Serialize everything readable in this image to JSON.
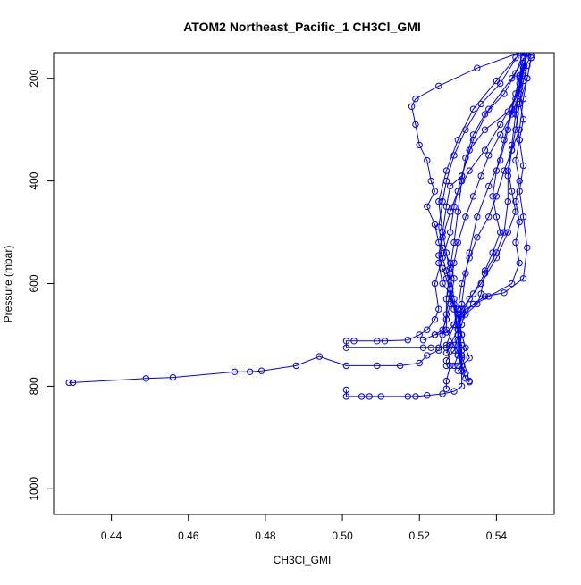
{
  "chart_data": {
    "type": "line",
    "title": "ATOM2 Northeast_Pacific_1 CH3Cl_GMI",
    "xlabel": "CH3Cl_GMI",
    "ylabel": "Pressure (mbar)",
    "xlim": [
      0.425,
      0.555
    ],
    "ylim": [
      1050,
      150
    ],
    "y_reversed": true,
    "x_ticks": [
      "0.44",
      "0.46",
      "0.48",
      "0.50",
      "0.52",
      "0.54"
    ],
    "y_ticks": [
      "200",
      "400",
      "600",
      "800",
      "1000"
    ],
    "grid": false,
    "legend": "none",
    "marker": "open-circle",
    "colors": {
      "series": "#0000ff",
      "axis": "#000000",
      "background": "#ffffff"
    },
    "series": [
      {
        "points": [
          [
            0.547,
            150
          ],
          [
            0.548,
            175
          ],
          [
            0.547,
            205
          ],
          [
            0.546,
            245
          ],
          [
            0.547,
            280
          ],
          [
            0.546,
            320
          ],
          [
            0.545,
            360
          ],
          [
            0.546,
            400
          ],
          [
            0.545,
            440
          ],
          [
            0.546,
            480
          ],
          [
            0.545,
            520
          ],
          [
            0.546,
            560
          ],
          [
            0.544,
            600
          ],
          [
            0.538,
            625
          ],
          [
            0.532,
            650
          ],
          [
            0.531,
            680
          ],
          [
            0.53,
            700
          ],
          [
            0.531,
            720
          ],
          [
            0.53,
            740
          ],
          [
            0.531,
            760
          ],
          [
            0.532,
            785
          ],
          [
            0.533,
            792
          ]
        ]
      },
      {
        "points": [
          [
            0.549,
            160
          ],
          [
            0.548,
            200
          ],
          [
            0.547,
            240
          ],
          [
            0.546,
            300
          ],
          [
            0.544,
            340
          ],
          [
            0.542,
            380
          ],
          [
            0.54,
            430
          ],
          [
            0.538,
            470
          ],
          [
            0.535,
            510
          ],
          [
            0.533,
            550
          ],
          [
            0.531,
            600
          ],
          [
            0.53,
            650
          ],
          [
            0.529,
            680
          ],
          [
            0.527,
            720
          ],
          [
            0.528,
            760
          ],
          [
            0.527,
            790
          ],
          [
            0.527,
            805
          ]
        ]
      },
      {
        "points": [
          [
            0.548,
            150
          ],
          [
            0.547,
            190
          ],
          [
            0.546,
            230
          ],
          [
            0.544,
            270
          ],
          [
            0.541,
            310
          ],
          [
            0.538,
            350
          ],
          [
            0.536,
            390
          ],
          [
            0.534,
            430
          ],
          [
            0.532,
            470
          ],
          [
            0.53,
            520
          ],
          [
            0.529,
            560
          ],
          [
            0.528,
            610
          ],
          [
            0.527,
            660
          ],
          [
            0.526,
            700
          ],
          [
            0.525,
            730
          ],
          [
            0.522,
            740
          ],
          [
            0.52,
            755
          ],
          [
            0.515,
            760
          ],
          [
            0.509,
            760
          ],
          [
            0.501,
            760
          ],
          [
            0.494,
            742
          ],
          [
            0.488,
            760
          ],
          [
            0.479,
            770
          ],
          [
            0.476,
            772
          ],
          [
            0.472,
            772
          ],
          [
            0.456,
            783
          ],
          [
            0.449,
            785
          ],
          [
            0.43,
            793
          ],
          [
            0.429,
            793
          ]
        ]
      },
      {
        "points": [
          [
            0.545,
            160
          ],
          [
            0.54,
            205
          ],
          [
            0.534,
            260
          ],
          [
            0.53,
            320
          ],
          [
            0.527,
            380
          ],
          [
            0.525,
            440
          ],
          [
            0.526,
            500
          ],
          [
            0.525,
            545
          ],
          [
            0.526,
            570
          ],
          [
            0.527,
            590
          ],
          [
            0.529,
            640
          ],
          [
            0.53,
            690
          ],
          [
            0.531,
            730
          ],
          [
            0.531,
            770
          ],
          [
            0.531,
            800
          ],
          [
            0.529,
            810
          ],
          [
            0.526,
            815
          ],
          [
            0.522,
            818
          ],
          [
            0.519,
            820
          ],
          [
            0.517,
            820
          ],
          [
            0.51,
            820
          ],
          [
            0.507,
            820
          ],
          [
            0.505,
            820
          ],
          [
            0.501,
            820
          ],
          [
            0.501,
            807
          ]
        ]
      },
      {
        "points": [
          [
            0.546,
            150
          ],
          [
            0.535,
            180
          ],
          [
            0.525,
            215
          ],
          [
            0.519,
            240
          ],
          [
            0.518,
            255
          ],
          [
            0.519,
            290
          ],
          [
            0.52,
            330
          ],
          [
            0.522,
            360
          ],
          [
            0.523,
            400
          ],
          [
            0.524,
            420
          ],
          [
            0.522,
            450
          ],
          [
            0.524,
            485
          ],
          [
            0.525,
            520
          ],
          [
            0.526,
            550
          ],
          [
            0.527,
            575
          ],
          [
            0.528,
            610
          ],
          [
            0.529,
            650
          ],
          [
            0.53,
            700
          ],
          [
            0.531,
            740
          ],
          [
            0.531,
            770
          ]
        ]
      },
      {
        "points": [
          [
            0.548,
            150
          ],
          [
            0.547,
            180
          ],
          [
            0.546,
            220
          ],
          [
            0.543,
            265
          ],
          [
            0.537,
            300
          ],
          [
            0.533,
            340
          ],
          [
            0.531,
            390
          ],
          [
            0.528,
            410
          ],
          [
            0.527,
            450
          ],
          [
            0.526,
            500
          ],
          [
            0.527,
            540
          ],
          [
            0.528,
            580
          ],
          [
            0.529,
            630
          ],
          [
            0.53,
            670
          ],
          [
            0.531,
            700
          ],
          [
            0.532,
            725
          ],
          [
            0.533,
            745
          ],
          [
            0.531,
            760
          ],
          [
            0.53,
            770
          ]
        ]
      },
      {
        "points": [
          [
            0.547,
            160
          ],
          [
            0.546,
            195
          ],
          [
            0.545,
            230
          ],
          [
            0.543,
            300
          ],
          [
            0.541,
            360
          ],
          [
            0.538,
            410
          ],
          [
            0.535,
            470
          ],
          [
            0.533,
            540
          ],
          [
            0.532,
            580
          ],
          [
            0.531,
            640
          ],
          [
            0.53,
            700
          ],
          [
            0.529,
            730
          ],
          [
            0.527,
            750
          ],
          [
            0.527,
            760
          ]
        ]
      },
      {
        "points": [
          [
            0.549,
            155
          ],
          [
            0.547,
            185
          ],
          [
            0.545,
            240
          ],
          [
            0.541,
            290
          ],
          [
            0.537,
            340
          ],
          [
            0.533,
            380
          ],
          [
            0.53,
            420
          ],
          [
            0.528,
            460
          ],
          [
            0.526,
            510
          ],
          [
            0.525,
            560
          ],
          [
            0.526,
            600
          ],
          [
            0.528,
            620
          ],
          [
            0.53,
            660
          ],
          [
            0.531,
            700
          ],
          [
            0.53,
            740
          ],
          [
            0.529,
            760
          ]
        ]
      },
      {
        "points": [
          [
            0.548,
            150
          ],
          [
            0.546,
            200
          ],
          [
            0.544,
            260
          ],
          [
            0.542,
            320
          ],
          [
            0.54,
            380
          ],
          [
            0.539,
            430
          ],
          [
            0.54,
            470
          ],
          [
            0.541,
            500
          ],
          [
            0.539,
            540
          ],
          [
            0.537,
            575
          ],
          [
            0.536,
            620
          ],
          [
            0.535,
            640
          ],
          [
            0.532,
            660
          ],
          [
            0.529,
            680
          ],
          [
            0.527,
            695
          ],
          [
            0.524,
            700
          ],
          [
            0.521,
            710
          ]
        ]
      },
      {
        "points": [
          [
            0.547,
            170
          ],
          [
            0.546,
            210
          ],
          [
            0.545,
            260
          ],
          [
            0.546,
            320
          ],
          [
            0.547,
            370
          ],
          [
            0.546,
            420
          ],
          [
            0.547,
            470
          ],
          [
            0.548,
            530
          ],
          [
            0.547,
            590
          ],
          [
            0.542,
            618
          ],
          [
            0.537,
            625
          ],
          [
            0.534,
            640
          ],
          [
            0.531,
            665
          ],
          [
            0.53,
            690
          ],
          [
            0.528,
            720
          ],
          [
            0.527,
            735
          ]
        ]
      },
      {
        "points": [
          [
            0.548,
            152
          ],
          [
            0.544,
            200
          ],
          [
            0.538,
            260
          ],
          [
            0.534,
            320
          ],
          [
            0.531,
            390
          ],
          [
            0.529,
            450
          ],
          [
            0.528,
            500
          ],
          [
            0.526,
            550
          ],
          [
            0.524,
            600
          ],
          [
            0.525,
            650
          ],
          [
            0.524,
            670
          ],
          [
            0.522,
            690
          ],
          [
            0.52,
            700
          ],
          [
            0.517,
            710
          ],
          [
            0.511,
            712
          ],
          [
            0.509,
            712
          ],
          [
            0.503,
            712
          ],
          [
            0.501,
            712
          ],
          [
            0.501,
            725
          ],
          [
            0.521,
            725
          ],
          [
            0.523,
            725
          ],
          [
            0.525,
            725
          ],
          [
            0.527,
            725
          ]
        ]
      },
      {
        "points": [
          [
            0.547,
            150
          ],
          [
            0.545,
            190
          ],
          [
            0.542,
            230
          ],
          [
            0.537,
            270
          ],
          [
            0.534,
            310
          ],
          [
            0.532,
            355
          ],
          [
            0.531,
            400
          ],
          [
            0.53,
            460
          ],
          [
            0.529,
            520
          ],
          [
            0.528,
            570
          ],
          [
            0.527,
            630
          ],
          [
            0.527,
            690
          ],
          [
            0.529,
            720
          ],
          [
            0.531,
            745
          ],
          [
            0.53,
            760
          ]
        ]
      },
      {
        "points": [
          [
            0.549,
            160
          ],
          [
            0.548,
            200
          ],
          [
            0.546,
            250
          ],
          [
            0.545,
            300
          ],
          [
            0.544,
            340
          ],
          [
            0.543,
            390
          ],
          [
            0.543,
            440
          ],
          [
            0.542,
            500
          ],
          [
            0.54,
            540
          ],
          [
            0.537,
            580
          ],
          [
            0.534,
            620
          ],
          [
            0.531,
            650
          ],
          [
            0.53,
            680
          ],
          [
            0.53,
            710
          ],
          [
            0.531,
            740
          ],
          [
            0.533,
            790
          ]
        ]
      },
      {
        "points": [
          [
            0.546,
            150
          ],
          [
            0.541,
            210
          ],
          [
            0.536,
            250
          ],
          [
            0.532,
            300
          ],
          [
            0.529,
            350
          ],
          [
            0.527,
            400
          ],
          [
            0.526,
            440
          ],
          [
            0.525,
            490
          ],
          [
            0.526,
            530
          ],
          [
            0.528,
            560
          ],
          [
            0.529,
            590
          ],
          [
            0.528,
            640
          ],
          [
            0.527,
            670
          ],
          [
            0.526,
            690
          ],
          [
            0.524,
            700
          ]
        ]
      },
      {
        "points": [
          [
            0.548,
            150
          ],
          [
            0.547,
            180
          ],
          [
            0.546,
            220
          ],
          [
            0.545,
            270
          ],
          [
            0.544,
            330
          ],
          [
            0.543,
            380
          ],
          [
            0.544,
            420
          ],
          [
            0.545,
            460
          ],
          [
            0.543,
            500
          ],
          [
            0.54,
            550
          ],
          [
            0.536,
            600
          ],
          [
            0.533,
            630
          ],
          [
            0.531,
            660
          ],
          [
            0.53,
            690
          ],
          [
            0.53,
            730
          ],
          [
            0.531,
            760
          ],
          [
            0.532,
            775
          ]
        ]
      }
    ]
  }
}
